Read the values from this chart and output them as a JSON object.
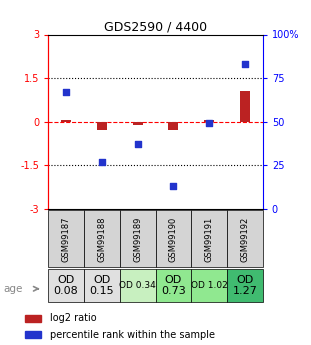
{
  "title": "GDS2590 / 4400",
  "samples": [
    "GSM99187",
    "GSM99188",
    "GSM99189",
    "GSM99190",
    "GSM99191",
    "GSM99192"
  ],
  "log2_ratio": [
    0.07,
    -0.28,
    -0.13,
    -0.28,
    0.04,
    1.05
  ],
  "percentile_rank": [
    67,
    27,
    37,
    13,
    49,
    83
  ],
  "od_values": [
    "OD\n0.08",
    "OD\n0.15",
    "OD 0.34",
    "OD\n0.73",
    "OD 1.02",
    "OD\n1.27"
  ],
  "od_colors": [
    "#e0e0e0",
    "#e0e0e0",
    "#c8f0c0",
    "#90e890",
    "#90e890",
    "#40bb70"
  ],
  "od_fontsize_large": 8,
  "od_fontsize_small": 6.5,
  "od_large": [
    true,
    true,
    false,
    true,
    false,
    true
  ],
  "ylim_left": [
    -3,
    3
  ],
  "ylim_right": [
    0,
    100
  ],
  "yticks_left": [
    -3,
    -1.5,
    0,
    1.5,
    3
  ],
  "yticks_right": [
    0,
    25,
    50,
    75,
    100
  ],
  "bar_color_log2": "#bb2222",
  "bar_color_pct": "#2233cc",
  "legend_log2": "log2 ratio",
  "legend_pct": "percentile rank within the sample",
  "cell_bg": "#d4d4d4"
}
